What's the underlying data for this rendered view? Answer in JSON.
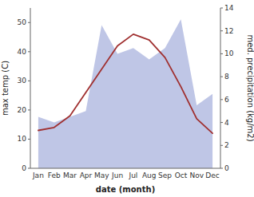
{
  "chart_data": {
    "type": "line",
    "xlabel": "date (month)",
    "ylabel": "max temp (C)",
    "y2label": "med. precipitation (kg/m2)",
    "categories": [
      "Jan",
      "Feb",
      "Mar",
      "Apr",
      "May",
      "Jun",
      "Jul",
      "Aug",
      "Sep",
      "Oct",
      "Nov",
      "Dec"
    ],
    "series": [
      {
        "type": "area",
        "axis": "y2",
        "color": "#7080c8",
        "values": [
          4.5,
          4.0,
          4.5,
          5.0,
          12.5,
          10.0,
          10.5,
          9.5,
          10.5,
          13.0,
          5.5,
          6.5
        ]
      },
      {
        "type": "line",
        "color": "#a03030",
        "values": [
          13,
          14,
          18,
          26,
          34,
          42,
          46,
          44,
          38,
          28,
          17,
          12
        ]
      }
    ],
    "ylim": [
      0,
      55
    ],
    "yticks": [
      0,
      10,
      20,
      30,
      40,
      50
    ],
    "y2lim": [
      0,
      14
    ],
    "y2ticks": [
      0,
      2,
      4,
      6,
      8,
      10,
      12,
      14
    ],
    "grid": false
  }
}
